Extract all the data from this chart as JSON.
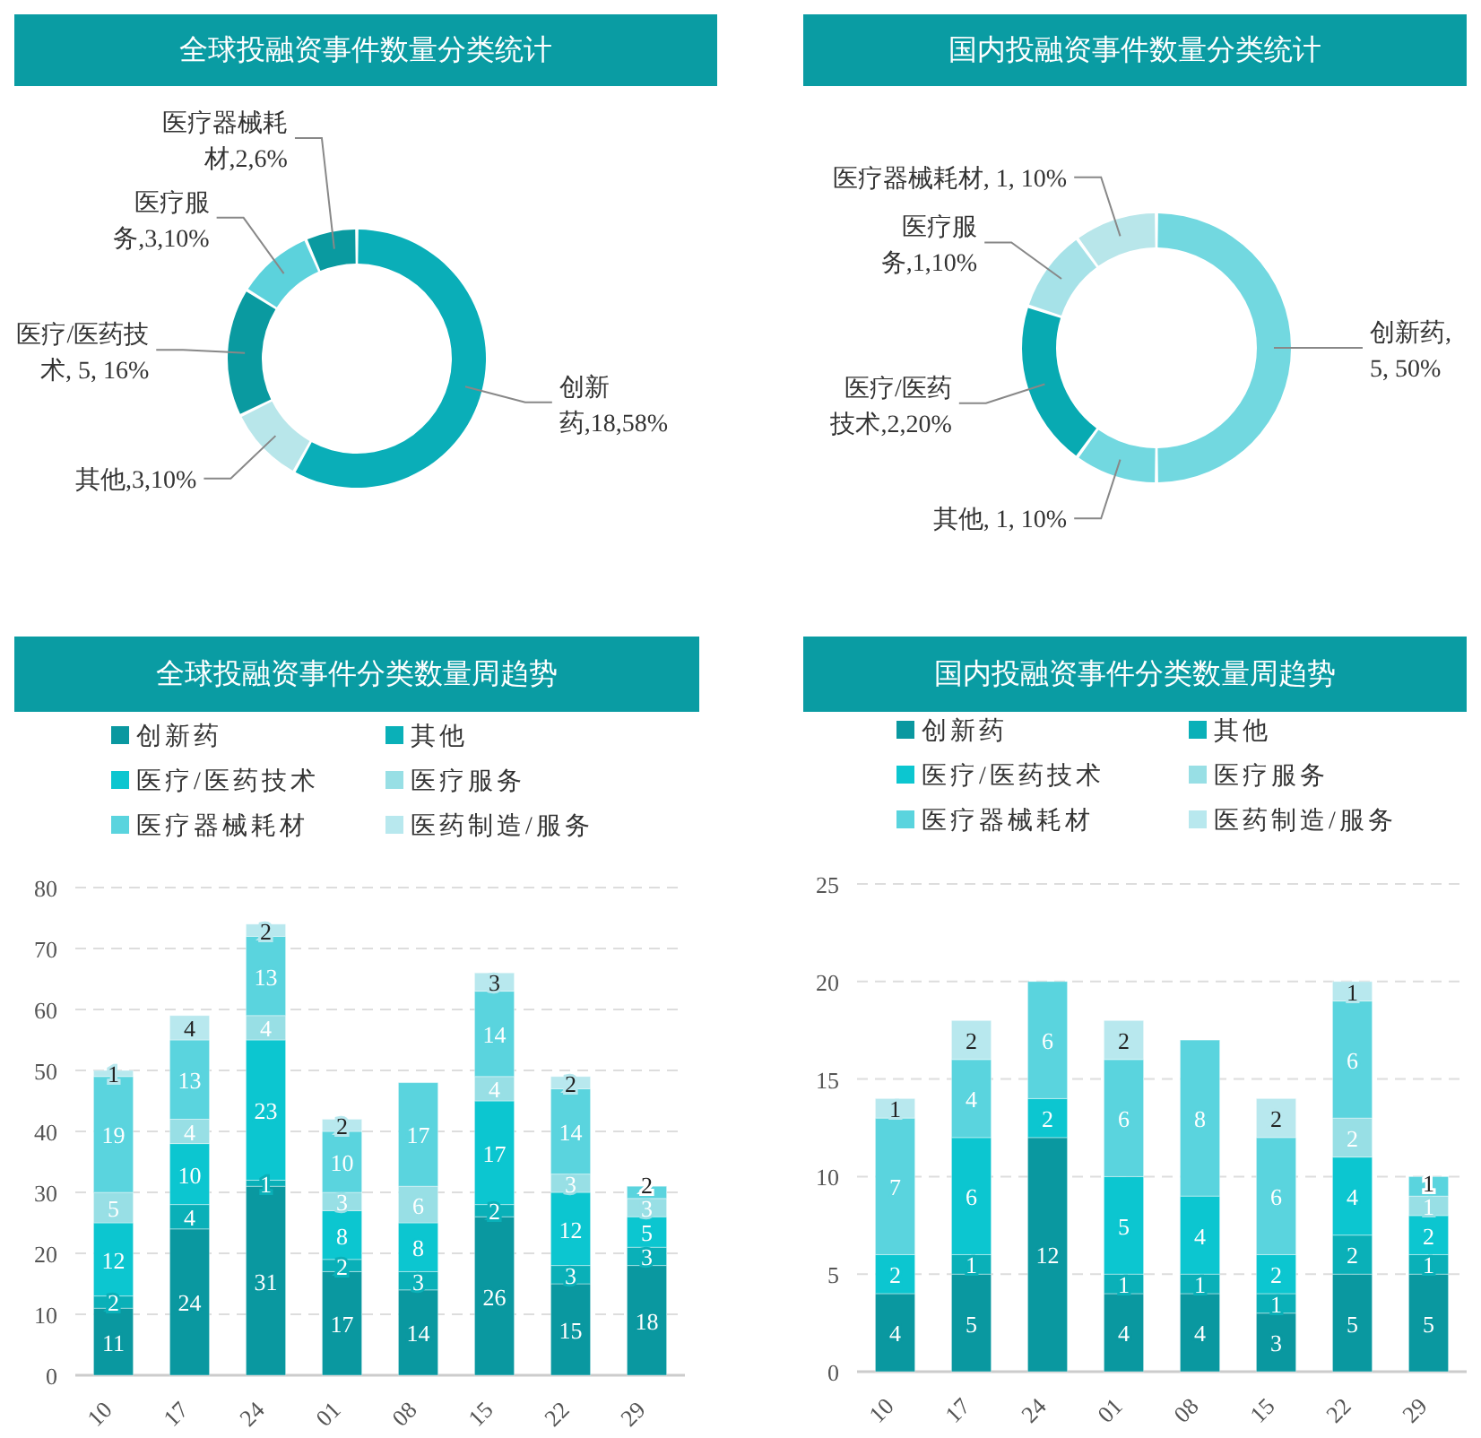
{
  "chart_data": [
    {
      "type": "donut",
      "title": "全球投融资事件数量分类统计",
      "categories": [
        "创新药,18,58%",
        "其他,3,10%",
        "医疗/医药技术, 5, 16%",
        "医疗服务,3,10%",
        "医疗器械耗材,2,6%"
      ],
      "values": [
        18,
        3,
        5,
        3,
        2
      ],
      "colors": [
        "#0aaeb8",
        "#b8e6ea",
        "#0a9aa0",
        "#5cd2dc",
        "#0a9aa0"
      ]
    },
    {
      "type": "donut",
      "title": "国内投融资事件数量分类统计",
      "categories": [
        "创新药, 5, 50%",
        "其他, 1, 10%",
        "医疗/医药技术,2,20%",
        "医疗服务,1,10%",
        "医疗器械耗材, 1, 10%"
      ],
      "values": [
        5,
        1,
        2,
        1,
        1
      ],
      "colors": [
        "#72d8e0",
        "#72d8e0",
        "#08aab2",
        "#a6e2e8",
        "#b8e6ea"
      ]
    },
    {
      "type": "bar",
      "title": "全球投融资事件分类数量周趋势",
      "categories": [
        "10",
        "17",
        "24",
        "01",
        "08",
        "15",
        "22",
        "29"
      ],
      "stacked": true,
      "ylim": [
        0,
        80
      ],
      "yticks": [
        0,
        10,
        20,
        30,
        40,
        50,
        60,
        70,
        80
      ],
      "grid": "y",
      "legend": "top",
      "data_labels": true,
      "series": [
        {
          "name": "创新药",
          "color": "#0a98a0",
          "values": [
            11,
            24,
            31,
            17,
            14,
            26,
            15,
            18
          ]
        },
        {
          "name": "其他",
          "color": "#0ab0b8",
          "values": [
            2,
            4,
            1,
            2,
            3,
            2,
            3,
            3
          ]
        },
        {
          "name": "医疗/医药技术",
          "color": "#0cc6d0",
          "values": [
            12,
            10,
            23,
            8,
            8,
            17,
            12,
            5
          ]
        },
        {
          "name": "医疗服务",
          "color": "#98dfe5",
          "values": [
            5,
            4,
            4,
            3,
            6,
            4,
            3,
            3
          ]
        },
        {
          "name": "医疗器械耗材",
          "color": "#5ad4de",
          "values": [
            19,
            13,
            13,
            10,
            17,
            14,
            14,
            2
          ]
        },
        {
          "name": "医药制造/服务",
          "color": "#b8e8ee",
          "values": [
            1,
            4,
            2,
            2,
            null,
            3,
            2,
            null
          ]
        }
      ]
    },
    {
      "type": "bar",
      "title": "国内投融资事件分类数量周趋势",
      "categories": [
        "10",
        "17",
        "24",
        "01",
        "08",
        "15",
        "22",
        "29"
      ],
      "stacked": true,
      "ylim": [
        0,
        25
      ],
      "yticks": [
        0,
        5,
        10,
        15,
        20,
        25
      ],
      "grid": "y",
      "legend": "top",
      "data_labels": true,
      "series": [
        {
          "name": "创新药",
          "color": "#0a98a0",
          "values": [
            4,
            5,
            12,
            4,
            4,
            3,
            5,
            5
          ]
        },
        {
          "name": "其他",
          "color": "#0ab0b8",
          "values": [
            null,
            1,
            null,
            1,
            1,
            1,
            2,
            1
          ]
        },
        {
          "name": "医疗/医药技术",
          "color": "#0cc6d0",
          "values": [
            2,
            6,
            2,
            5,
            4,
            2,
            4,
            2
          ]
        },
        {
          "name": "医疗服务",
          "color": "#98dfe5",
          "values": [
            null,
            null,
            null,
            null,
            null,
            null,
            2,
            1
          ]
        },
        {
          "name": "医疗器械耗材",
          "color": "#5ad4de",
          "values": [
            7,
            4,
            6,
            6,
            8,
            6,
            6,
            1
          ]
        },
        {
          "name": "医药制造/服务",
          "color": "#b8e8ee",
          "values": [
            1,
            2,
            null,
            2,
            null,
            2,
            1,
            null
          ]
        }
      ]
    }
  ]
}
